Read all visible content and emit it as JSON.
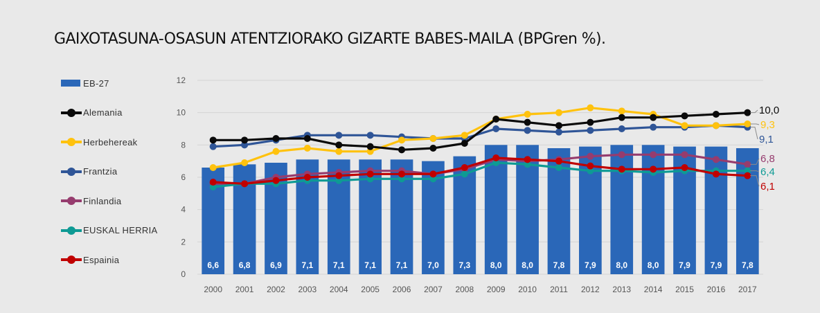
{
  "chart_data": {
    "type": "bar",
    "title": "GAIXOTASUNA-OSASUN ATENTZIORAKO GIZARTE BABES-MAILA (BPGren %).",
    "categories": [
      "2000",
      "2001",
      "2002",
      "2003",
      "2004",
      "2005",
      "2006",
      "2007",
      "2008",
      "2009",
      "2010",
      "2011",
      "2012",
      "2013",
      "2014",
      "2015",
      "2016",
      "2017"
    ],
    "ylim": [
      0,
      12
    ],
    "yticks": [
      0,
      2,
      4,
      6,
      8,
      10,
      12
    ],
    "bar_series": {
      "name": "EB-27",
      "color": "#2a67b8",
      "values": [
        6.6,
        6.8,
        6.9,
        7.1,
        7.1,
        7.1,
        7.1,
        7.0,
        7.3,
        8.0,
        8.0,
        7.8,
        7.9,
        8.0,
        8.0,
        7.9,
        7.9,
        7.8
      ],
      "labels": [
        "6,6",
        "6,8",
        "6,9",
        "7,1",
        "7,1",
        "7,1",
        "7,1",
        "7,0",
        "7,3",
        "8,0",
        "8,0",
        "7,8",
        "7,9",
        "8,0",
        "8,0",
        "7,9",
        "7,9",
        "7,8"
      ]
    },
    "line_series": [
      {
        "name": "Alemania",
        "color": "#0a0a0a",
        "end_label": "10,0",
        "values": [
          8.3,
          8.3,
          8.4,
          8.4,
          8.0,
          7.9,
          7.7,
          7.8,
          8.1,
          9.6,
          9.4,
          9.2,
          9.4,
          9.7,
          9.7,
          9.8,
          9.9,
          10.0
        ]
      },
      {
        "name": "Herbehereak",
        "color": "#ffc20e",
        "end_label": "9,3",
        "values": [
          6.6,
          6.9,
          7.6,
          7.8,
          7.6,
          7.6,
          8.3,
          8.4,
          8.6,
          9.6,
          9.9,
          10.0,
          10.3,
          10.1,
          9.9,
          9.2,
          9.2,
          9.3
        ]
      },
      {
        "name": "Frantzia",
        "color": "#2f5597",
        "end_label": "9,1",
        "values": [
          7.9,
          8.0,
          8.3,
          8.6,
          8.6,
          8.6,
          8.5,
          8.4,
          8.4,
          9.0,
          8.9,
          8.8,
          8.9,
          9.0,
          9.1,
          9.1,
          9.2,
          9.1
        ]
      },
      {
        "name": "Finlandia",
        "color": "#963c6e",
        "end_label": "6,8",
        "values": [
          5.6,
          5.6,
          6.0,
          6.2,
          6.3,
          6.4,
          6.4,
          6.2,
          6.5,
          7.1,
          7.0,
          7.1,
          7.3,
          7.4,
          7.4,
          7.4,
          7.1,
          6.8
        ]
      },
      {
        "name": "EUSKAL HERRIA",
        "color": "#0e9a94",
        "end_label": "6,4",
        "values": [
          5.4,
          5.6,
          5.6,
          5.8,
          5.8,
          5.9,
          5.9,
          5.9,
          6.2,
          6.9,
          6.8,
          6.6,
          6.4,
          6.4,
          6.3,
          6.4,
          6.4,
          6.4
        ]
      },
      {
        "name": "Espainia",
        "color": "#c00000",
        "end_label": "6,1",
        "values": [
          5.7,
          5.6,
          5.8,
          6.0,
          6.1,
          6.2,
          6.2,
          6.2,
          6.6,
          7.2,
          7.1,
          7.0,
          6.7,
          6.5,
          6.5,
          6.6,
          6.2,
          6.1
        ]
      }
    ],
    "legend_order": [
      "EB-27",
      "Alemania",
      "Herbehereak",
      "Frantzia",
      "Finlandia",
      "EUSKAL HERRIA",
      "Espainia"
    ],
    "legend_position": "left",
    "grid": true
  }
}
